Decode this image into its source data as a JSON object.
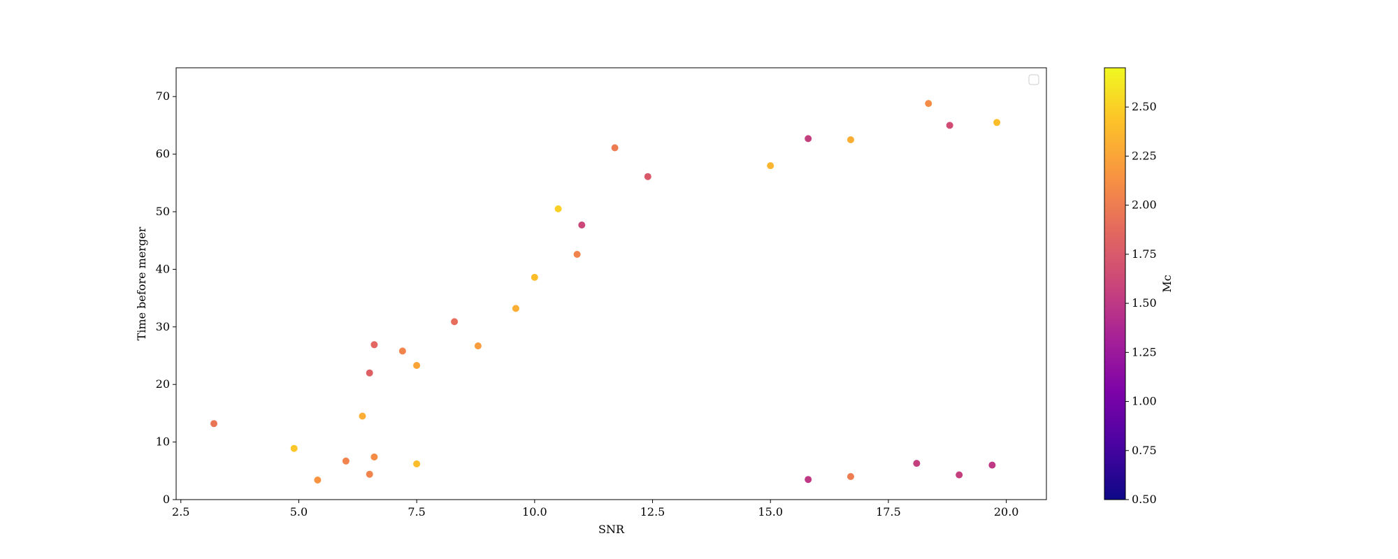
{
  "chart_data": {
    "type": "scatter",
    "xlabel": "SNR",
    "ylabel": "Time before merger",
    "colorbar_label": "Mc",
    "xlim": [
      2.4,
      20.85
    ],
    "ylim": [
      0,
      75
    ],
    "x_ticks": [
      2.5,
      5.0,
      7.5,
      10.0,
      12.5,
      15.0,
      17.5,
      20.0
    ],
    "x_tick_labels": [
      "2.5",
      "5.0",
      "7.5",
      "10.0",
      "12.5",
      "15.0",
      "17.5",
      "20.0"
    ],
    "y_ticks": [
      0,
      10,
      20,
      30,
      40,
      50,
      60,
      70
    ],
    "y_tick_labels": [
      "0",
      "10",
      "20",
      "30",
      "40",
      "50",
      "60",
      "70"
    ],
    "color_range": [
      0.5,
      2.7
    ],
    "colorbar_ticks": [
      0.5,
      0.75,
      1.0,
      1.25,
      1.5,
      1.75,
      2.0,
      2.25,
      2.5
    ],
    "colorbar_tick_labels": [
      "0.50",
      "0.75",
      "1.00",
      "1.25",
      "1.50",
      "1.75",
      "2.00",
      "2.25",
      "2.50"
    ],
    "colormap": "plasma",
    "legend": "top-right (empty)",
    "grid": false,
    "series": [
      {
        "points": [
          [
            3.2,
            13.2,
            1.95
          ],
          [
            4.9,
            8.9,
            2.45
          ],
          [
            5.4,
            3.4,
            2.15
          ],
          [
            6.0,
            6.7,
            2.05
          ],
          [
            6.35,
            14.5,
            2.3
          ],
          [
            6.5,
            22.0,
            1.8
          ],
          [
            6.5,
            4.4,
            2.05
          ],
          [
            6.6,
            26.9,
            1.85
          ],
          [
            6.6,
            7.4,
            2.1
          ],
          [
            7.2,
            25.8,
            2.05
          ],
          [
            7.5,
            23.3,
            2.25
          ],
          [
            7.5,
            6.2,
            2.4
          ],
          [
            8.3,
            30.9,
            1.9
          ],
          [
            8.8,
            26.7,
            2.2
          ],
          [
            9.6,
            33.2,
            2.3
          ],
          [
            10.0,
            38.6,
            2.4
          ],
          [
            10.5,
            50.5,
            2.5
          ],
          [
            10.9,
            42.6,
            2.05
          ],
          [
            11.0,
            47.7,
            1.6
          ],
          [
            11.7,
            61.1,
            2.0
          ],
          [
            12.4,
            56.1,
            1.75
          ],
          [
            15.0,
            58.0,
            2.35
          ],
          [
            15.8,
            62.7,
            1.55
          ],
          [
            16.7,
            62.5,
            2.3
          ],
          [
            18.35,
            68.8,
            2.1
          ],
          [
            18.8,
            65.0,
            1.65
          ],
          [
            19.8,
            65.5,
            2.4
          ],
          [
            19.0,
            4.3,
            1.55
          ],
          [
            19.7,
            6.0,
            1.5
          ],
          [
            18.1,
            6.3,
            1.55
          ],
          [
            16.7,
            4.0,
            2.0
          ],
          [
            15.8,
            3.5,
            1.5
          ]
        ]
      }
    ]
  }
}
